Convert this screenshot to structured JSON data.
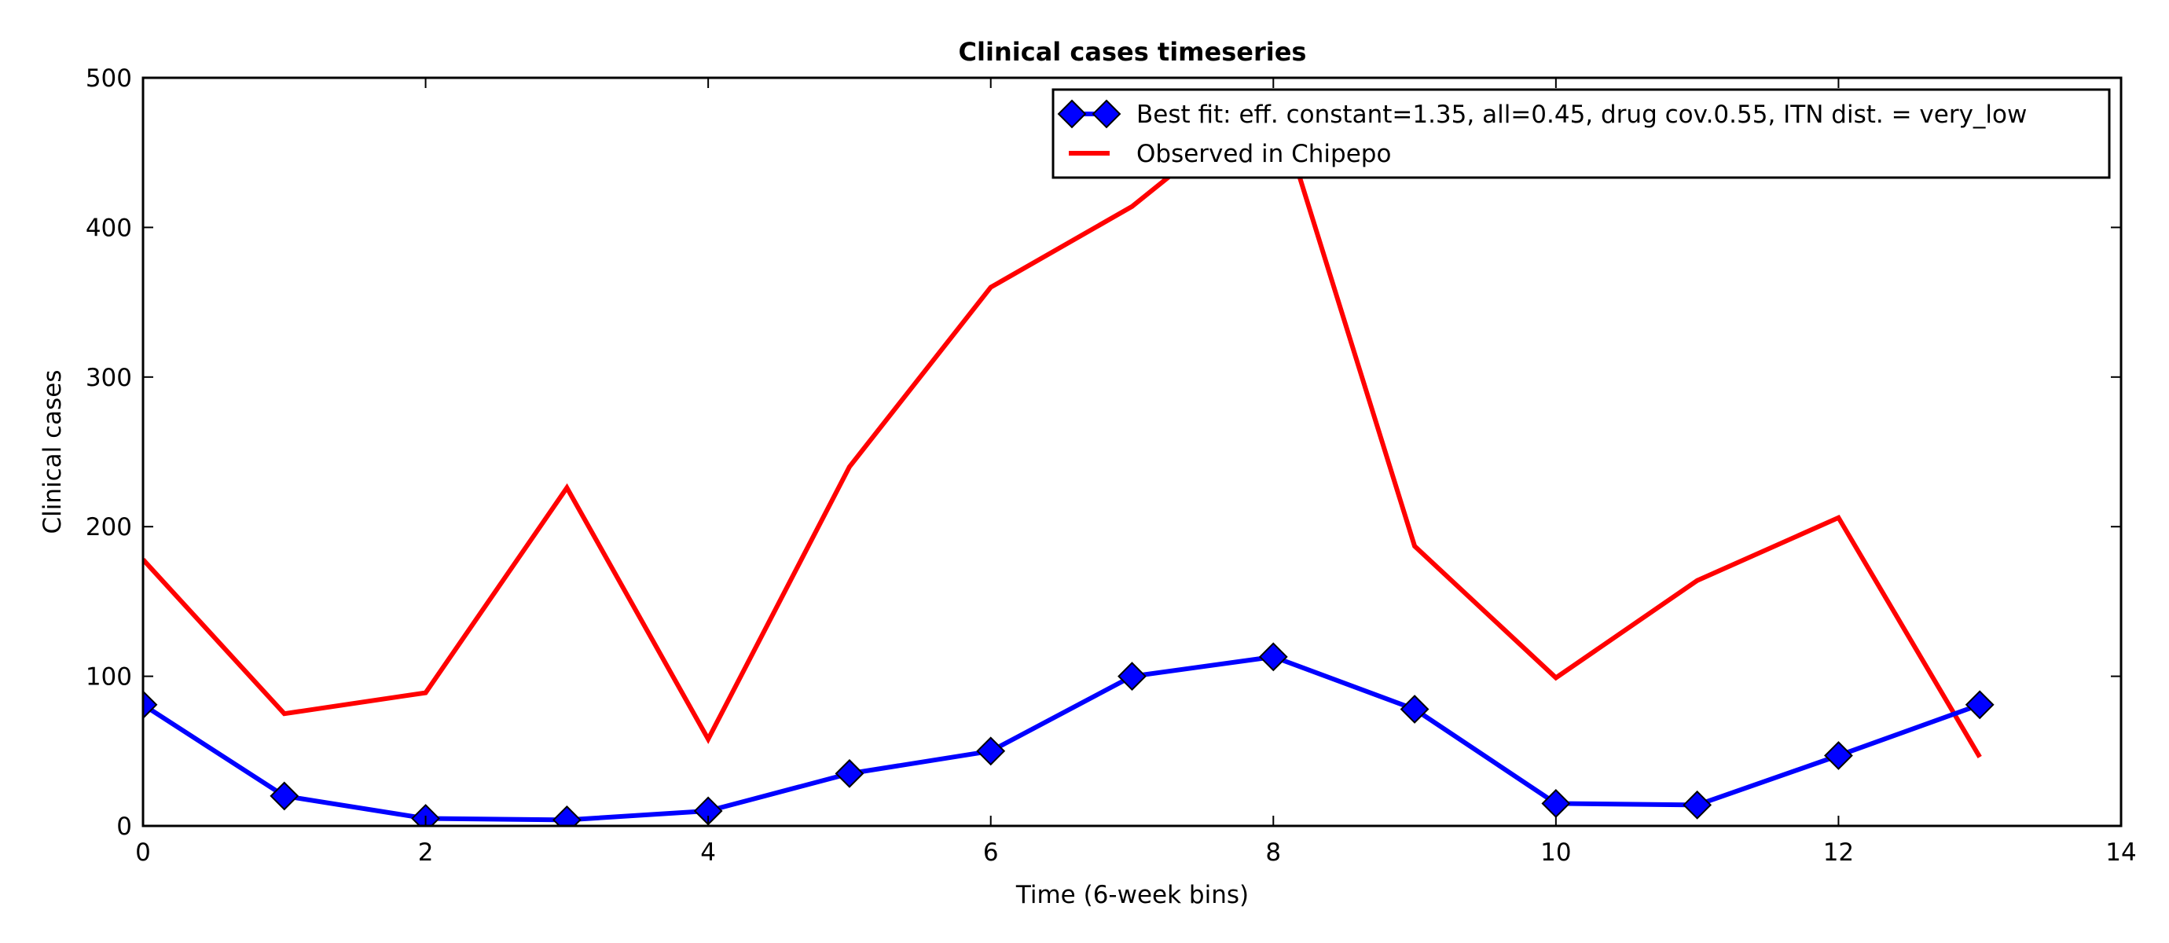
{
  "chart_data": {
    "type": "line",
    "title": "Clinical cases timeseries",
    "xlabel": "Time (6-week bins)",
    "ylabel": "Clinical cases",
    "xlim": [
      0,
      14
    ],
    "ylim": [
      0,
      500
    ],
    "xticks": [
      0,
      2,
      4,
      6,
      8,
      10,
      12,
      14
    ],
    "yticks": [
      0,
      100,
      200,
      300,
      400,
      500
    ],
    "grid": false,
    "legend_position": "top-right",
    "series": [
      {
        "name": "Best fit: eff. constant=1.35, all=0.45, drug cov.0.55, ITN dist. = very_low",
        "color": "#0000ff",
        "marker": "diamond",
        "x": [
          0,
          1,
          2,
          3,
          4,
          5,
          6,
          7,
          8,
          9,
          10,
          11,
          12,
          13
        ],
        "values": [
          81,
          20,
          5,
          4,
          10,
          35,
          50,
          100,
          113,
          78,
          15,
          14,
          47,
          81
        ]
      },
      {
        "name": "Observed in Chipepo",
        "color": "#ff0000",
        "marker": "none",
        "x": [
          0,
          1,
          2,
          3,
          4,
          5,
          6,
          7,
          8,
          9,
          10,
          11,
          12,
          13
        ],
        "values": [
          178,
          75,
          89,
          226,
          58,
          240,
          360,
          414,
          490,
          187,
          99,
          164,
          206,
          46
        ]
      }
    ]
  }
}
